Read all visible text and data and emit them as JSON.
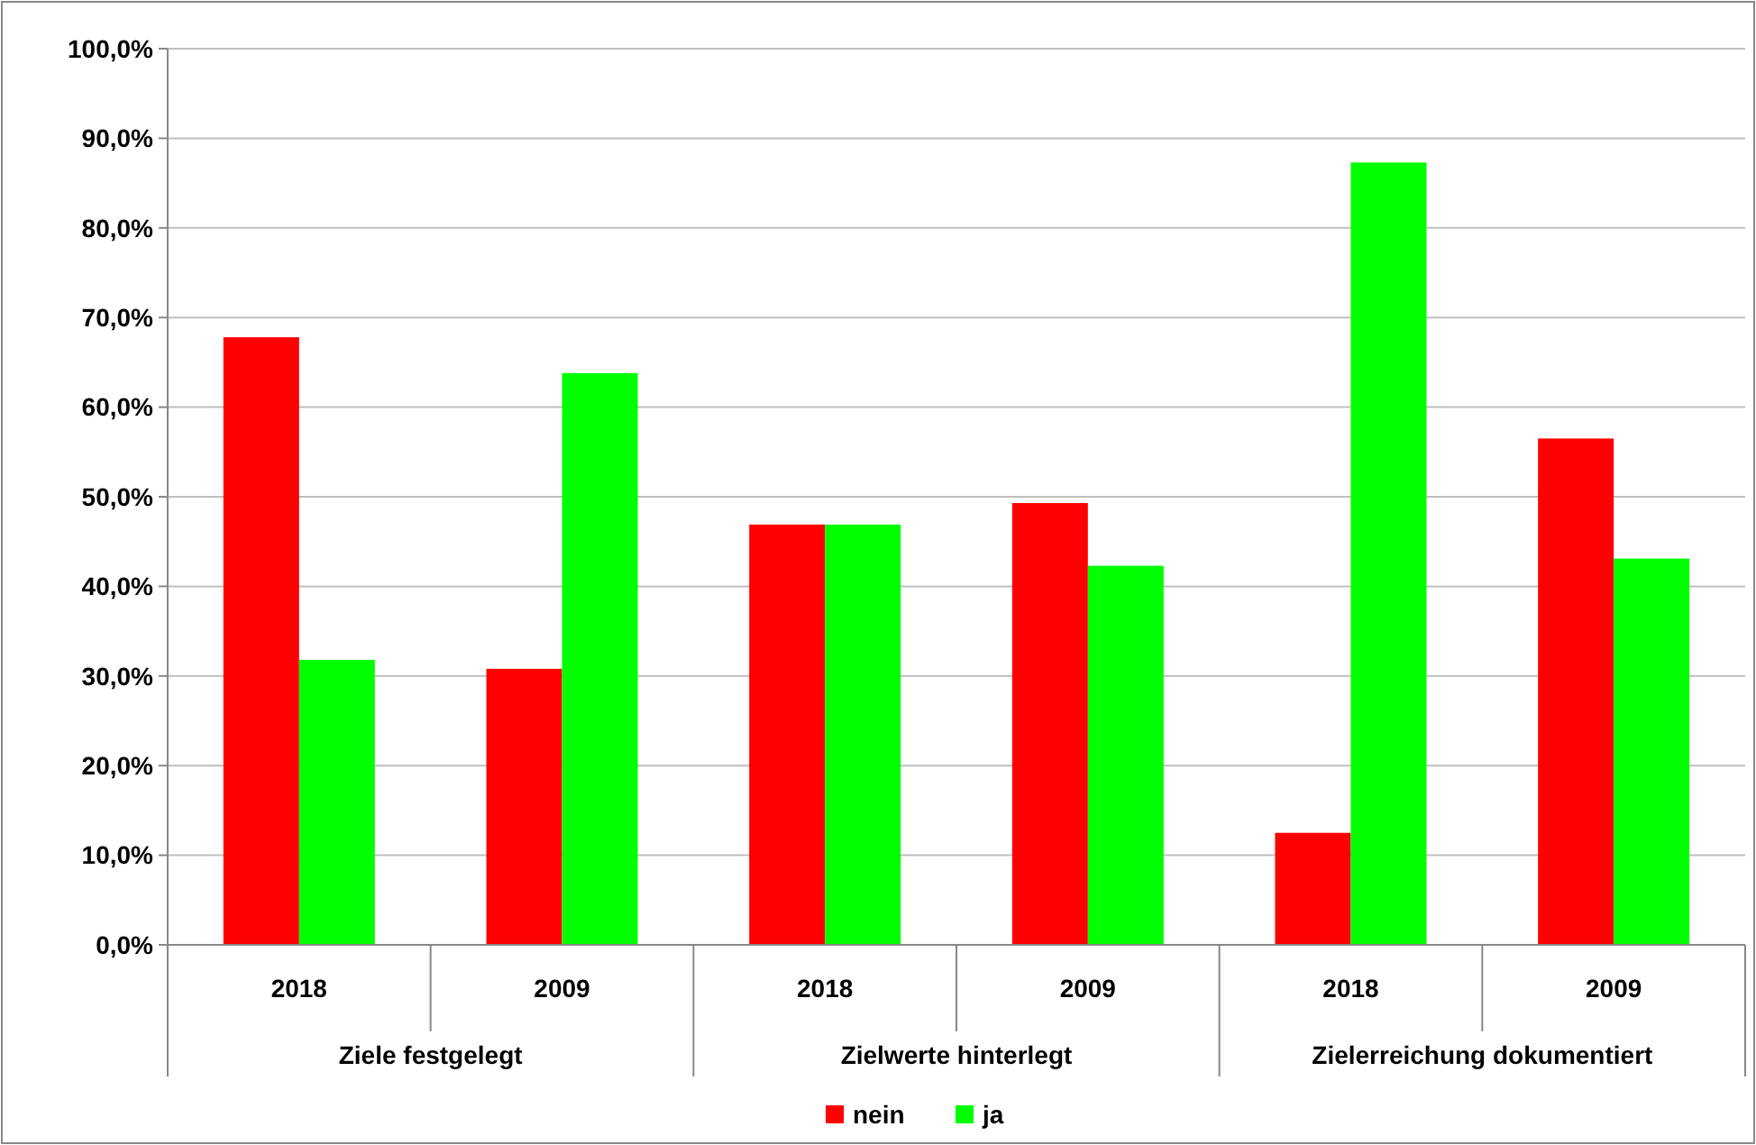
{
  "chart_data": {
    "type": "bar",
    "categories": [
      "2018",
      "2009",
      "2018",
      "2009",
      "2018",
      "2009"
    ],
    "series": [
      {
        "name": "nein",
        "color": "#ff0000",
        "values": [
          67.8,
          30.8,
          46.9,
          49.3,
          12.5,
          56.5
        ]
      },
      {
        "name": "ja",
        "color": "#00ff00",
        "values": [
          31.8,
          63.8,
          46.9,
          42.3,
          87.3,
          43.1
        ]
      }
    ],
    "annotations": [
      "Ziele festgelegt",
      "Zielwerte hinterlegt",
      "Zielerreichung dokumentiert"
    ],
    "ylim": [
      0,
      100
    ],
    "yticks": [
      {
        "value": 0,
        "label": "0,0%"
      },
      {
        "value": 10,
        "label": "10,0%"
      },
      {
        "value": 20,
        "label": "20,0%"
      },
      {
        "value": 30,
        "label": "30,0%"
      },
      {
        "value": 40,
        "label": "40,0%"
      },
      {
        "value": 50,
        "label": "50,0%"
      },
      {
        "value": 60,
        "label": "60,0%"
      },
      {
        "value": 70,
        "label": "70,0%"
      },
      {
        "value": 80,
        "label": "80,0%"
      },
      {
        "value": 90,
        "label": "90,0%"
      },
      {
        "value": 100,
        "label": "100,0%"
      }
    ],
    "grid": "y",
    "legend": "bottom"
  }
}
